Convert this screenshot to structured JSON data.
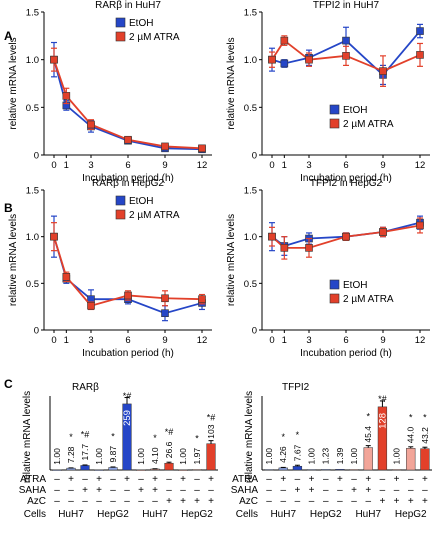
{
  "panels": [
    {
      "letter": "A"
    },
    {
      "letter": "B"
    },
    {
      "letter": "C"
    }
  ],
  "colors": {
    "etoh": "#2546c7",
    "atra": "#e2402a",
    "atra_light": "#f2a599",
    "light_blue": "#8fa6e6",
    "axis": "#000000"
  },
  "chart_data": [
    {
      "type": "line",
      "title": "RARβ in HuH7",
      "xlabel": "Incubation period (h)",
      "ylabel": "relative mRNA levels",
      "x": [
        0,
        1,
        3,
        6,
        9,
        12
      ],
      "xticks": [
        "0",
        "1",
        "3",
        "6",
        "9",
        "12"
      ],
      "ylim": [
        0,
        1.5
      ],
      "yticks": [
        "0",
        "0.5",
        "1.0",
        "1.5"
      ],
      "legend": "top-right",
      "series": [
        {
          "name": "EtOH",
          "values": [
            1.0,
            0.52,
            0.3,
            0.15,
            0.07,
            0.06
          ],
          "err": [
            0.18,
            0.05,
            0.06,
            0.02,
            0.02,
            0.01
          ]
        },
        {
          "name": "2 µM ATRA",
          "values": [
            1.0,
            0.62,
            0.32,
            0.16,
            0.09,
            0.07
          ],
          "err": [
            0.12,
            0.08,
            0.05,
            0.02,
            0.02,
            0.01
          ]
        }
      ]
    },
    {
      "type": "line",
      "title": "TFPI2 in HuH7",
      "xlabel": "Incubation period (h)",
      "ylabel": "relative mRNA levels",
      "x": [
        0,
        1,
        3,
        6,
        9,
        12
      ],
      "xticks": [
        "0",
        "1",
        "3",
        "6",
        "9",
        "12"
      ],
      "ylim": [
        0,
        1.5
      ],
      "yticks": [
        "0",
        "0.5",
        "1.0",
        "1.5"
      ],
      "legend": "bottom-right",
      "series": [
        {
          "name": "EtOH",
          "values": [
            1.0,
            0.96,
            1.02,
            1.2,
            0.84,
            1.3
          ],
          "err": [
            0.12,
            0.04,
            0.08,
            0.14,
            0.1,
            0.07
          ]
        },
        {
          "name": "2 µM ATRA",
          "values": [
            1.0,
            1.2,
            1.0,
            1.04,
            0.88,
            1.05
          ],
          "err": [
            0.08,
            0.05,
            0.07,
            0.1,
            0.16,
            0.12
          ]
        }
      ]
    },
    {
      "type": "line",
      "title": "RARβ in HepG2",
      "xlabel": "Incubation period (h)",
      "ylabel": "relative mRNA levels",
      "x": [
        0,
        1,
        3,
        6,
        9,
        12
      ],
      "xticks": [
        "0",
        "1",
        "3",
        "6",
        "9",
        "12"
      ],
      "ylim": [
        0,
        1.5
      ],
      "yticks": [
        "0",
        "0.5",
        "1.0",
        "1.5"
      ],
      "legend": "top-right",
      "series": [
        {
          "name": "EtOH",
          "values": [
            1.0,
            0.55,
            0.33,
            0.33,
            0.18,
            0.29
          ],
          "err": [
            0.22,
            0.05,
            0.1,
            0.05,
            0.08,
            0.07
          ]
        },
        {
          "name": "2 µM ATRA",
          "values": [
            1.0,
            0.57,
            0.26,
            0.37,
            0.34,
            0.33
          ],
          "err": [
            0.15,
            0.05,
            0.04,
            0.05,
            0.08,
            0.05
          ]
        }
      ]
    },
    {
      "type": "line",
      "title": "TFPI2 in HepG2",
      "xlabel": "Incubation period (h)",
      "ylabel": "relative mRNA levels",
      "x": [
        0,
        1,
        3,
        6,
        9,
        12
      ],
      "xticks": [
        "0",
        "1",
        "3",
        "6",
        "9",
        "12"
      ],
      "ylim": [
        0,
        1.5
      ],
      "yticks": [
        "0",
        "0.5",
        "1.0",
        "1.5"
      ],
      "legend": "bottom-right",
      "series": [
        {
          "name": "EtOH",
          "values": [
            1.0,
            0.9,
            0.98,
            1.0,
            1.05,
            1.15
          ],
          "err": [
            0.15,
            0.1,
            0.06,
            0.04,
            0.05,
            0.07
          ]
        },
        {
          "name": "2 µM ATRA",
          "values": [
            1.0,
            0.88,
            0.88,
            1.0,
            1.05,
            1.12
          ],
          "err": [
            0.1,
            0.12,
            0.1,
            0.04,
            0.05,
            0.08
          ]
        }
      ]
    },
    {
      "type": "bar",
      "title": "RARβ",
      "ylabel": "relative mRNA levels",
      "ylim": [
        0,
        290
      ],
      "rows": {
        "labels": [
          "ATRA",
          "SAHA",
          "AzC",
          "Cells"
        ],
        "atra": [
          "–",
          "+",
          "–",
          "+",
          "–",
          "+",
          "–",
          "+",
          "–",
          "+",
          "–",
          "+"
        ],
        "saha": [
          "–",
          "–",
          "+",
          "+",
          "–",
          "–",
          "+",
          "+",
          "–",
          "–",
          "–",
          "–"
        ],
        "azc": [
          "–",
          "–",
          "–",
          "–",
          "–",
          "–",
          "–",
          "–",
          "+",
          "+",
          "+",
          "+"
        ],
        "groups": [
          "HuH7",
          "HepG2",
          "HuH7",
          "HepG2"
        ]
      },
      "labels": [
        "1.00",
        "7.28",
        "17.7",
        "1.00",
        "9.87",
        "259",
        "1.00",
        "4.10",
        "26.6",
        "1.00",
        "1.97",
        "103"
      ],
      "stars": [
        "",
        "*",
        "*#",
        "",
        "*",
        "*#",
        "",
        "*",
        "*#",
        "",
        "*",
        "*#"
      ],
      "values": [
        1.0,
        7.28,
        17.7,
        1.0,
        9.87,
        259,
        1.0,
        4.1,
        26.6,
        1.0,
        1.97,
        103
      ],
      "err": [
        0.1,
        1.0,
        2.0,
        0.1,
        2.0,
        25,
        0.1,
        0.8,
        4.0,
        0.1,
        0.5,
        12
      ],
      "fills": [
        "light_blue",
        "light_blue",
        "etoh",
        "light_blue",
        "light_blue",
        "etoh",
        "atra_light",
        "atra_light",
        "atra",
        "atra_light",
        "atra_light",
        "atra"
      ]
    },
    {
      "type": "bar",
      "title": "TFPI2",
      "ylabel": "relative mRNA levels",
      "ylim": [
        0,
        150
      ],
      "rows": {
        "labels": [
          "ATRA",
          "SAHA",
          "AzC",
          "Cells"
        ],
        "atra": [
          "–",
          "+",
          "–",
          "+",
          "–",
          "+",
          "–",
          "+",
          "–",
          "+",
          "–",
          "+"
        ],
        "saha": [
          "–",
          "–",
          "+",
          "+",
          "–",
          "–",
          "+",
          "+",
          "–",
          "–",
          "–",
          "–"
        ],
        "azc": [
          "–",
          "–",
          "–",
          "–",
          "–",
          "–",
          "–",
          "–",
          "+",
          "+",
          "+",
          "+"
        ],
        "groups": [
          "HuH7",
          "HepG2",
          "HuH7",
          "HepG2"
        ]
      },
      "labels": [
        "1.00",
        "4.26",
        "7.67",
        "1.00",
        "1.23",
        "1.39",
        "1.00",
        "45.4",
        "128",
        "1.00",
        "44.0",
        "43.2"
      ],
      "stars": [
        "",
        "*",
        "*",
        "",
        "",
        "",
        "",
        "*",
        "*#",
        "",
        "*",
        "*"
      ],
      "values": [
        1.0,
        4.26,
        7.67,
        1.0,
        1.23,
        1.39,
        1.0,
        45.4,
        128,
        1.0,
        44.0,
        43.2
      ],
      "err": [
        0.1,
        1.0,
        2.0,
        0.1,
        0.3,
        0.3,
        0.1,
        4.0,
        12,
        0.1,
        3.0,
        3.0
      ],
      "fills": [
        "light_blue",
        "light_blue",
        "etoh",
        "light_blue",
        "light_blue",
        "etoh",
        "atra_light",
        "atra_light",
        "atra",
        "atra_light",
        "atra_light",
        "atra"
      ]
    }
  ]
}
